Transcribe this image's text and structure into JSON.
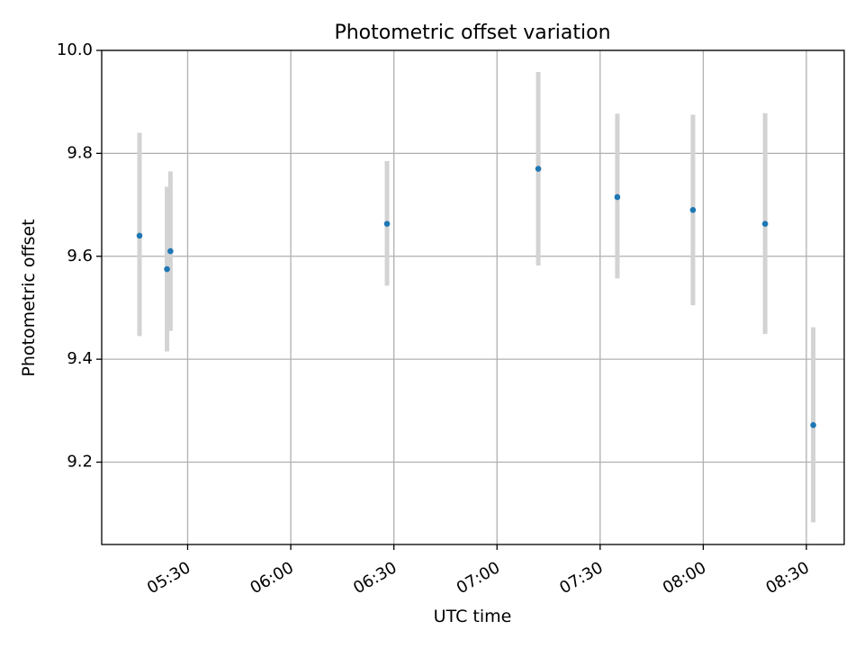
{
  "chart_data": {
    "type": "scatter",
    "title": "Photometric offset variation",
    "xlabel": "UTC time",
    "ylabel": "Photometric offset",
    "x_ticks": [
      "05:30",
      "06:00",
      "06:30",
      "07:00",
      "07:30",
      "08:00",
      "08:30"
    ],
    "y_ticks": [
      "9.2",
      "9.4",
      "9.6",
      "9.8",
      "10.0"
    ],
    "xlim": [
      "05:05",
      "08:41"
    ],
    "ylim": [
      9.04,
      10.0
    ],
    "grid": true,
    "colors": {
      "point": "#1f77b4",
      "errorbar": "#d3d3d3",
      "grid": "#b0b0b0"
    },
    "points": [
      {
        "x": "05:16",
        "y": 9.64,
        "yerr_low": 9.445,
        "yerr_high": 9.84
      },
      {
        "x": "05:24",
        "y": 9.575,
        "yerr_low": 9.415,
        "yerr_high": 9.735
      },
      {
        "x": "05:25",
        "y": 9.61,
        "yerr_low": 9.455,
        "yerr_high": 9.765
      },
      {
        "x": "06:28",
        "y": 9.663,
        "yerr_low": 9.543,
        "yerr_high": 9.785
      },
      {
        "x": "07:12",
        "y": 9.77,
        "yerr_low": 9.582,
        "yerr_high": 9.958
      },
      {
        "x": "07:35",
        "y": 9.715,
        "yerr_low": 9.557,
        "yerr_high": 9.877
      },
      {
        "x": "07:57",
        "y": 9.69,
        "yerr_low": 9.505,
        "yerr_high": 9.875
      },
      {
        "x": "08:18",
        "y": 9.663,
        "yerr_low": 9.449,
        "yerr_high": 9.878
      },
      {
        "x": "08:32",
        "y": 9.272,
        "yerr_low": 9.083,
        "yerr_high": 9.462
      }
    ]
  }
}
